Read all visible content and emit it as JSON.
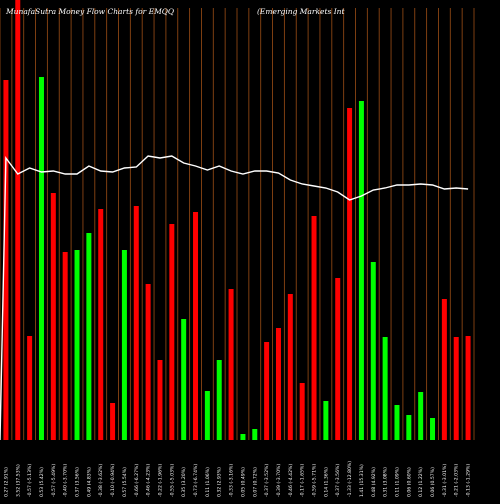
{
  "header": {
    "title": "MunafaSutra  Money Flow  Charts for EMQQ",
    "subtitle": "(Emerging Markets Int"
  },
  "colors": {
    "background": "#000000",
    "grid": "#8B4513",
    "up": "#00FF00",
    "down": "#FF0000",
    "line": "#FFFFFF"
  },
  "chart_data": {
    "type": "bar",
    "title": "MunafaSutra  Money Flow  Charts for EMQQ",
    "subtitle": "(Emerging Markets Int",
    "grid": true,
    "ylim": [
      0,
      440
    ],
    "categories": [
      "0.27 (2.91%)",
      "3.52 (37.53%)",
      "-0.57 (-5.13%)",
      "0.53 (5.42%)",
      "-0.57 (-5.49%)",
      "-0.40 (-3.70%)",
      "0.37 (3.56%)",
      "0.49 (4.83%)",
      "-0.38 (-3.62%)",
      "-0.10 (-0.94%)",
      "0.57 (5.54%)",
      "-0.66 (-6.27%)",
      "-0.46 (-4.23%)",
      "-0.22 (-1.96%)",
      "-0.55 (-5.03%)",
      "0.35 (3.20%)",
      "-0.73 (-6.74%)",
      "0.11 (1.06%)",
      "0.32 (2.93%)",
      "-0.33 (-3.16%)",
      "0.05 (0.49%)",
      "0.07 (0.72%)",
      "-0.37 (-3.52%)",
      "-0.39 (-3.70%)",
      "-0.46 (-4.42%)",
      "-0.17 (-1.65%)",
      "-0.59 (-5.71%)",
      "0.14 (1.36%)",
      "-0.37 (-3.56%)",
      "-1.33 (-12.80%)",
      "1.41 (15.31%)",
      "0.48 (4.92%)",
      "0.31 (3.08%)",
      "0.11 (1.09%)",
      "0.06 (0.60%)",
      "0.12 (1.22%)",
      "0.06 (0.57%)",
      "-0.31 (-3.01%)",
      "-0.21 (-2.03%)",
      "-0.13 (-1.29%)"
    ],
    "series": [
      {
        "type": "bar",
        "values": [
          360,
          440,
          104,
          363,
          247,
          188,
          190,
          207,
          231,
          37,
          190,
          234,
          156,
          80,
          216,
          121,
          228,
          49,
          80,
          151,
          6,
          11,
          98,
          112,
          146,
          57,
          224,
          39,
          162,
          332,
          339,
          178,
          103,
          35,
          25,
          48,
          22,
          141,
          103,
          104
        ],
        "direction": [
          "down",
          "down",
          "down",
          "up",
          "down",
          "down",
          "up",
          "up",
          "down",
          "down",
          "up",
          "down",
          "down",
          "down",
          "down",
          "up",
          "down",
          "up",
          "up",
          "down",
          "up",
          "up",
          "down",
          "down",
          "down",
          "down",
          "down",
          "up",
          "down",
          "down",
          "up",
          "up",
          "up",
          "up",
          "up",
          "up",
          "up",
          "down",
          "down",
          "down"
        ]
      },
      {
        "type": "line",
        "values": [
          282,
          266,
          272,
          268,
          269,
          266,
          266,
          274,
          269,
          268,
          272,
          273,
          284,
          282,
          284,
          277,
          274,
          270,
          274,
          269,
          266,
          269,
          269,
          267,
          260,
          256,
          254,
          252,
          248,
          240,
          244,
          250,
          252,
          255,
          255,
          256,
          255,
          251,
          252,
          251
        ]
      }
    ]
  }
}
